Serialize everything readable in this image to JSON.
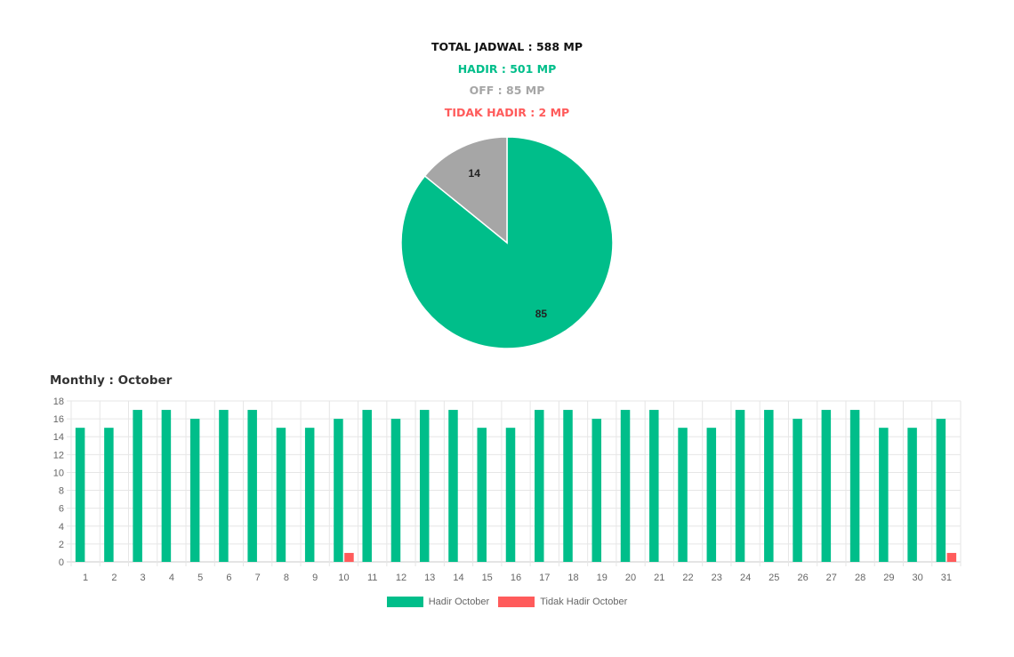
{
  "summary": {
    "total": "TOTAL JADWAL : 588 MP",
    "hadir": "HADIR : 501 MP",
    "off": "OFF : 85 MP",
    "tidak_hadir": "TIDAK HADIR : 2 MP"
  },
  "colors": {
    "hadir": "#00BE8A",
    "off": "#A6A6A6",
    "tidak_hadir": "#FF5B5B",
    "total": "#111111"
  },
  "chart_data": [
    {
      "type": "pie",
      "slices": [
        {
          "name": "Hadir",
          "value": 85,
          "color": "#00BE8A"
        },
        {
          "name": "Off",
          "value": 14,
          "color": "#A6A6A6"
        }
      ],
      "labels": [
        "85",
        "14"
      ]
    },
    {
      "type": "bar",
      "title": "Monthly : October",
      "categories": [
        "1",
        "2",
        "3",
        "4",
        "5",
        "6",
        "7",
        "8",
        "9",
        "10",
        "11",
        "12",
        "13",
        "14",
        "15",
        "16",
        "17",
        "18",
        "19",
        "20",
        "21",
        "22",
        "23",
        "24",
        "25",
        "26",
        "27",
        "28",
        "29",
        "30",
        "31"
      ],
      "series": [
        {
          "name": "Hadir October",
          "color": "#00BE8A",
          "values": [
            15,
            15,
            17,
            17,
            16,
            17,
            17,
            15,
            15,
            16,
            17,
            16,
            17,
            17,
            15,
            15,
            17,
            17,
            16,
            17,
            17,
            15,
            15,
            17,
            17,
            16,
            17,
            17,
            15,
            15,
            16
          ]
        },
        {
          "name": "Tidak Hadir October",
          "color": "#FF5B5B",
          "values": [
            0,
            0,
            0,
            0,
            0,
            0,
            0,
            0,
            0,
            1,
            0,
            0,
            0,
            0,
            0,
            0,
            0,
            0,
            0,
            0,
            0,
            0,
            0,
            0,
            0,
            0,
            0,
            0,
            0,
            0,
            1
          ]
        }
      ],
      "yticks": [
        "0",
        "2",
        "4",
        "6",
        "8",
        "10",
        "12",
        "14",
        "16",
        "18"
      ],
      "ylim": [
        0,
        18
      ],
      "grid": true,
      "legend_position": "bottom"
    }
  ]
}
